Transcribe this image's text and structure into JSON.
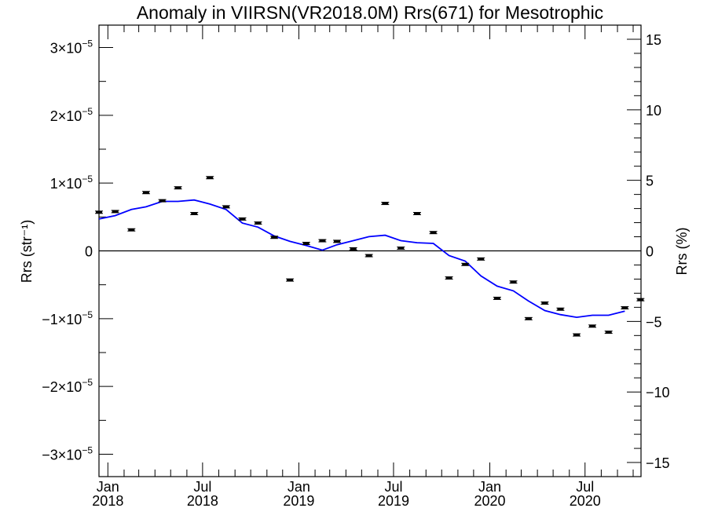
{
  "chart_data": {
    "type": "scatter",
    "title": "Anomaly in VIIRSN(VR2018.0M) Rrs(671) for Mesotrophic",
    "ylabel_left": "Rrs (str⁻¹)",
    "ylabel_right": "Rrs (%)",
    "xlabel": "",
    "x_ticks": [
      {
        "month": "Jan",
        "year": "2018",
        "date": "2018-01"
      },
      {
        "month": "Jul",
        "year": "2018",
        "date": "2018-07"
      },
      {
        "month": "Jan",
        "year": "2019",
        "date": "2019-01"
      },
      {
        "month": "Jul",
        "year": "2019",
        "date": "2019-07"
      },
      {
        "month": "Jan",
        "year": "2020",
        "date": "2020-01"
      },
      {
        "month": "Jul",
        "year": "2020",
        "date": "2020-07"
      }
    ],
    "xlim": [
      "2017-12-15",
      "2020-10-16"
    ],
    "left_axis": {
      "ylim": [
        -3.33e-05,
        3.33e-05
      ],
      "tick_labels": [
        {
          "mantissa": "3",
          "exp": "−5",
          "value": 3e-05
        },
        {
          "mantissa": "2",
          "exp": "−5",
          "value": 2e-05
        },
        {
          "mantissa": "1",
          "exp": "−5",
          "value": 1e-05
        },
        {
          "plain": "0",
          "value": 0
        },
        {
          "mantissa": "−1",
          "exp": "−5",
          "value": -1e-05
        },
        {
          "mantissa": "−2",
          "exp": "−5",
          "value": -2e-05
        },
        {
          "mantissa": "−3",
          "exp": "−5",
          "value": -3e-05
        }
      ]
    },
    "right_axis": {
      "ylim": [
        -16,
        16
      ],
      "tick_labels": [
        "15",
        "10",
        "5",
        "0",
        "−5",
        "−10",
        "−15"
      ],
      "tick_values": [
        15,
        10,
        5,
        0,
        -5,
        -10,
        -15
      ]
    },
    "zero_line": true,
    "series": [
      {
        "style": "points-with-error-bars",
        "color": "#000000",
        "points": [
          {
            "x": "2017-12-15",
            "y": 5.7e-06
          },
          {
            "x": "2018-01-15",
            "y": 5.8e-06
          },
          {
            "x": "2018-02-15",
            "y": 3.1e-06
          },
          {
            "x": "2018-03-15",
            "y": 8.6e-06
          },
          {
            "x": "2018-04-15",
            "y": 7.4e-06
          },
          {
            "x": "2018-05-15",
            "y": 9.3e-06
          },
          {
            "x": "2018-06-15",
            "y": 5.5e-06
          },
          {
            "x": "2018-07-15",
            "y": 1.08e-05
          },
          {
            "x": "2018-08-15",
            "y": 6.5e-06
          },
          {
            "x": "2018-09-15",
            "y": 4.7e-06
          },
          {
            "x": "2018-10-15",
            "y": 4.1e-06
          },
          {
            "x": "2018-11-15",
            "y": 2e-06
          },
          {
            "x": "2018-12-15",
            "y": -4.3e-06
          },
          {
            "x": "2019-01-15",
            "y": 1.1e-06
          },
          {
            "x": "2019-02-15",
            "y": 1.5e-06
          },
          {
            "x": "2019-03-15",
            "y": 1.4e-06
          },
          {
            "x": "2019-04-15",
            "y": 3e-07
          },
          {
            "x": "2019-05-15",
            "y": -7e-07
          },
          {
            "x": "2019-06-15",
            "y": 7e-06
          },
          {
            "x": "2019-07-15",
            "y": 4e-07
          },
          {
            "x": "2019-08-15",
            "y": 5.5e-06
          },
          {
            "x": "2019-09-15",
            "y": 2.7e-06
          },
          {
            "x": "2019-10-15",
            "y": -4e-06
          },
          {
            "x": "2019-11-15",
            "y": -2e-06
          },
          {
            "x": "2019-12-15",
            "y": -1.2e-06
          },
          {
            "x": "2020-01-15",
            "y": -7e-06
          },
          {
            "x": "2020-02-15",
            "y": -4.6e-06
          },
          {
            "x": "2020-03-15",
            "y": -1e-05
          },
          {
            "x": "2020-04-15",
            "y": -7.7e-06
          },
          {
            "x": "2020-05-15",
            "y": -8.6e-06
          },
          {
            "x": "2020-06-15",
            "y": -1.24e-05
          },
          {
            "x": "2020-07-15",
            "y": -1.11e-05
          },
          {
            "x": "2020-08-15",
            "y": -1.2e-05
          },
          {
            "x": "2020-09-15",
            "y": -8.4e-06
          },
          {
            "x": "2020-10-15",
            "y": -7.2e-06
          }
        ]
      },
      {
        "style": "line",
        "color": "#0000ff",
        "points": [
          {
            "x": "2017-12-15",
            "y": 4.7e-06
          },
          {
            "x": "2018-01-15",
            "y": 5.2e-06
          },
          {
            "x": "2018-02-15",
            "y": 6.1e-06
          },
          {
            "x": "2018-03-15",
            "y": 6.5e-06
          },
          {
            "x": "2018-04-15",
            "y": 7.3e-06
          },
          {
            "x": "2018-05-15",
            "y": 7.3e-06
          },
          {
            "x": "2018-06-15",
            "y": 7.5e-06
          },
          {
            "x": "2018-07-15",
            "y": 6.9e-06
          },
          {
            "x": "2018-08-15",
            "y": 6.1e-06
          },
          {
            "x": "2018-09-15",
            "y": 4.1e-06
          },
          {
            "x": "2018-10-15",
            "y": 3.5e-06
          },
          {
            "x": "2018-11-15",
            "y": 2.2e-06
          },
          {
            "x": "2018-12-15",
            "y": 1.4e-06
          },
          {
            "x": "2019-01-15",
            "y": 8e-07
          },
          {
            "x": "2019-02-15",
            "y": 1e-07
          },
          {
            "x": "2019-03-15",
            "y": 9e-07
          },
          {
            "x": "2019-04-15",
            "y": 1.5e-06
          },
          {
            "x": "2019-05-15",
            "y": 2.1e-06
          },
          {
            "x": "2019-06-15",
            "y": 2.3e-06
          },
          {
            "x": "2019-07-15",
            "y": 1.5e-06
          },
          {
            "x": "2019-08-15",
            "y": 1.2e-06
          },
          {
            "x": "2019-09-15",
            "y": 1.1e-06
          },
          {
            "x": "2019-10-15",
            "y": -7e-07
          },
          {
            "x": "2019-11-15",
            "y": -1.5e-06
          },
          {
            "x": "2019-12-15",
            "y": -3.7e-06
          },
          {
            "x": "2020-01-15",
            "y": -5.2e-06
          },
          {
            "x": "2020-02-15",
            "y": -5.9e-06
          },
          {
            "x": "2020-03-15",
            "y": -7.4e-06
          },
          {
            "x": "2020-04-15",
            "y": -8.8e-06
          },
          {
            "x": "2020-05-15",
            "y": -9.4e-06
          },
          {
            "x": "2020-06-15",
            "y": -9.8e-06
          },
          {
            "x": "2020-07-15",
            "y": -9.5e-06
          },
          {
            "x": "2020-08-15",
            "y": -9.5e-06
          },
          {
            "x": "2020-09-15",
            "y": -8.9e-06
          }
        ]
      }
    ]
  }
}
